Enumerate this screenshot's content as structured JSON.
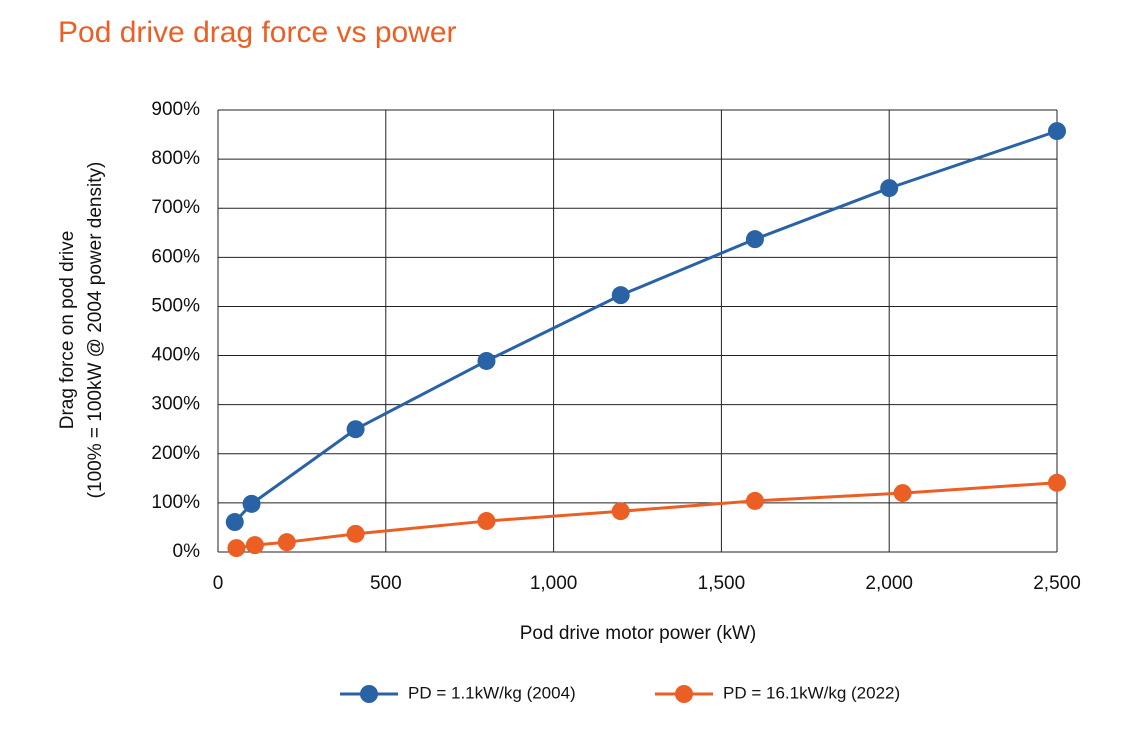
{
  "chart_data": {
    "type": "line",
    "title": "Pod drive drag force vs power",
    "x_label": "Pod drive motor power (kW)",
    "y_label": [
      "Drag force on pod drive",
      "(100% = 100kW @ 2004 power density)"
    ],
    "xlim": [
      0,
      2500
    ],
    "xticks": [
      0,
      500,
      {
        "value": 1000,
        "label": "1,000"
      },
      {
        "value": 1500,
        "label": "1,500"
      },
      {
        "value": 2000,
        "label": "2,000"
      },
      {
        "value": 2500,
        "label": "2,500"
      }
    ],
    "ylim": [
      0,
      900
    ],
    "yticks": [
      {
        "value": 0,
        "label": "0%"
      },
      {
        "value": 100,
        "label": "100%"
      },
      {
        "value": 200,
        "label": "200%"
      },
      {
        "value": 300,
        "label": "300%"
      },
      {
        "value": 400,
        "label": "400%"
      },
      {
        "value": 500,
        "label": "500%"
      },
      {
        "value": 600,
        "label": "600%"
      },
      {
        "value": 700,
        "label": "700%"
      },
      {
        "value": 800,
        "label": "800%"
      },
      {
        "value": 900,
        "label": "900%"
      }
    ],
    "grid": true,
    "legend": "bottom",
    "series": [
      {
        "name": "PD = 1.1kW/kg (2004)",
        "color": "#2a62a6",
        "x": [
          50,
          100,
          410,
          800,
          1200,
          1600,
          2000,
          2500
        ],
        "values": [
          61,
          98,
          250,
          389,
          523,
          637,
          741,
          857
        ]
      },
      {
        "name": "PD = 16.1kW/kg (2022)",
        "color": "#ec5f24",
        "x": [
          55,
          110,
          205,
          410,
          800,
          1200,
          1600,
          2040,
          2500
        ],
        "values": [
          8,
          14,
          20,
          37,
          63,
          83,
          104,
          120,
          141
        ]
      }
    ]
  }
}
